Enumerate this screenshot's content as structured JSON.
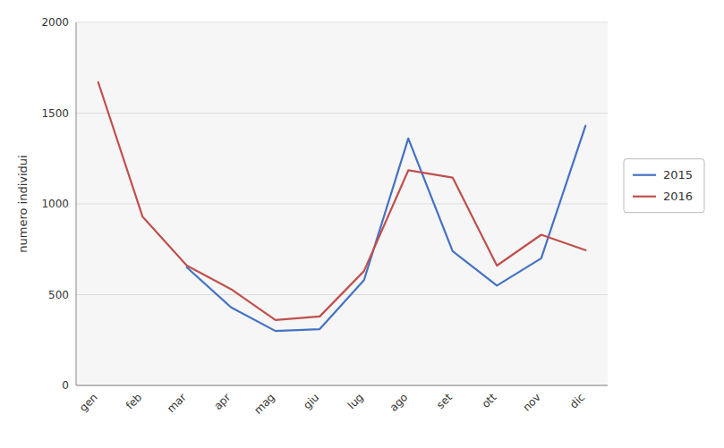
{
  "chart_data": {
    "type": "line",
    "categories": [
      "gen",
      "feb",
      "mar",
      "apr",
      "mag",
      "giu",
      "lug",
      "ago",
      "set",
      "ott",
      "nov",
      "dic"
    ],
    "series": [
      {
        "name": "2015",
        "color": "#4472C4",
        "values": [
          null,
          null,
          650,
          430,
          300,
          310,
          580,
          1360,
          740,
          550,
          700,
          1430
        ]
      },
      {
        "name": "2016",
        "color": "#C0504D",
        "values": [
          1670,
          930,
          660,
          530,
          360,
          380,
          630,
          1185,
          1145,
          660,
          830,
          745
        ]
      }
    ],
    "y_label": "numero individui",
    "ylim": [
      0,
      2000
    ],
    "yticks": [
      0,
      500,
      1000,
      1500,
      2000
    ],
    "grid": true,
    "legend": "right"
  }
}
